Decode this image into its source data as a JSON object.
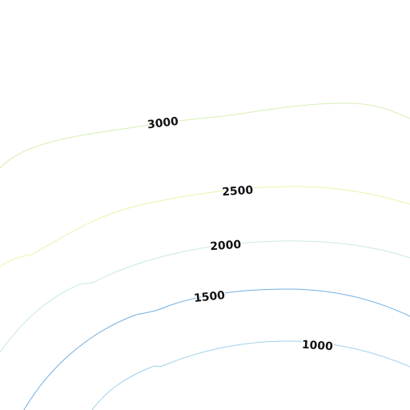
{
  "map": {
    "contours": [
      {
        "elevation": "3000",
        "color": "#d8efb4"
      },
      {
        "elevation": "2500",
        "color": "#f0f0a8"
      },
      {
        "elevation": "2000",
        "color": "#c8eadf"
      },
      {
        "elevation": "1500",
        "color": "#72aee2"
      },
      {
        "elevation": "1000",
        "color": "#9ed0ea"
      }
    ]
  }
}
